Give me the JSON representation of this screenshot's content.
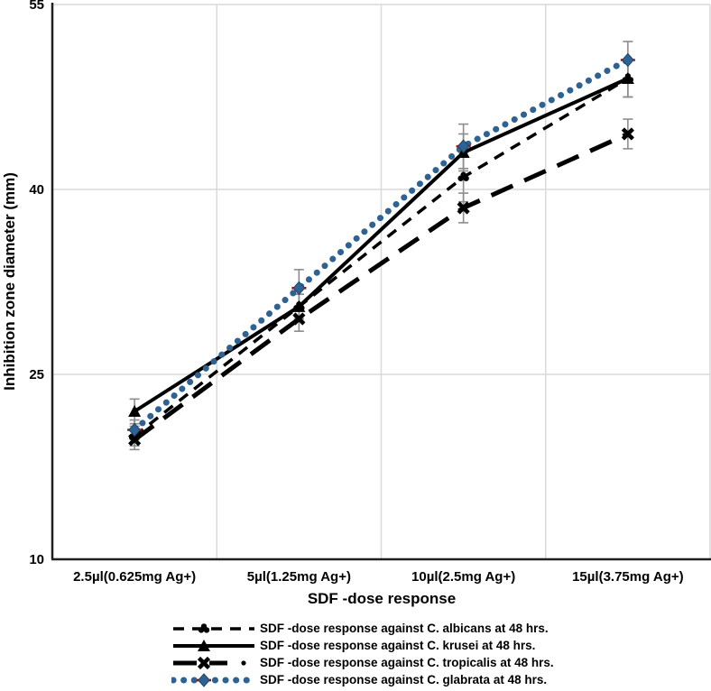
{
  "chart_data": {
    "type": "line",
    "title": "",
    "xlabel": "SDF -dose response",
    "ylabel": "Inhibition zone diameter (mm)",
    "ylim": [
      10,
      55
    ],
    "yticks": [
      10,
      25,
      40,
      55
    ],
    "categories": [
      "2.5µl(0.625mg Ag+)",
      "5µl(1.25mg Ag+)",
      "10µl(2.5mg Ag+)",
      "15µl(3.75mg Ag+)"
    ],
    "grid": "horizontal gridlines at yticks, vertical gridlines at category boundaries",
    "legend_position": "bottom",
    "error_bars": true,
    "series": [
      {
        "key": "albicans",
        "name": "SDF -dose response against C. albicans at 48 hrs.",
        "values": [
          20,
          30.5,
          41,
          49
        ],
        "errors": [
          0.8,
          1.0,
          2.0,
          1.5
        ],
        "line_style": "dashed",
        "marker": "club",
        "color": "#000000"
      },
      {
        "key": "krusei",
        "name": "SDF -dose response against C. krusei at 48 hrs.",
        "values": [
          22,
          30.5,
          43,
          49
        ],
        "errors": [
          1.0,
          1.0,
          1.5,
          1.5
        ],
        "line_style": "solid",
        "marker": "triangle",
        "color": "#000000"
      },
      {
        "key": "tropicalis",
        "name": "SDF -dose response against C. tropicalis at 48 hrs.",
        "values": [
          19.7,
          29.5,
          38.5,
          44.5
        ],
        "errors": [
          0.8,
          1.0,
          1.2,
          1.2
        ],
        "line_style": "long-dash",
        "marker": "x",
        "color": "#000000"
      },
      {
        "key": "glabrata",
        "name": "SDF -dose response against C. glabrata at 48 hrs.",
        "values": [
          20.5,
          32,
          43.5,
          50.5
        ],
        "errors": [
          0.8,
          1.5,
          1.8,
          1.5
        ],
        "line_style": "dotted",
        "marker": "diamond",
        "color": "#2E6293",
        "accent": "#C00000"
      }
    ],
    "colors": {
      "gridline": "#D9D9D9",
      "axis": "#1F1F1F",
      "error_bar": "#8C8C8C",
      "text": "#000000",
      "blue_series": "#2E6293",
      "red_accent": "#C00000"
    }
  }
}
